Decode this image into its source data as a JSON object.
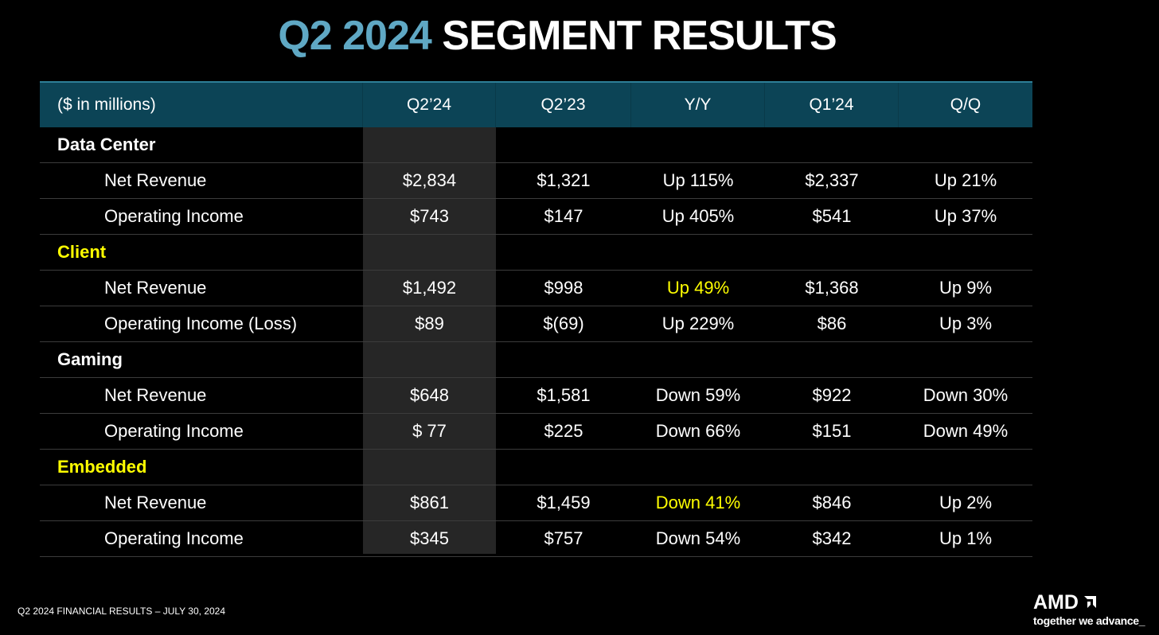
{
  "title": {
    "accent": "Q2 2024",
    "main": "SEGMENT RESULTS"
  },
  "table": {
    "columns": [
      "($ in millions)",
      "Q2’24",
      "Q2’23",
      "Y/Y",
      "Q1’24",
      "Q/Q"
    ],
    "rows": [
      {
        "type": "segment",
        "label": "Data Center",
        "highlight": false
      },
      {
        "type": "line",
        "label": "Net Revenue",
        "values": [
          "$2,834",
          "$1,321",
          "Up 115%",
          "$2,337",
          "Up 21%"
        ]
      },
      {
        "type": "line",
        "label": "Operating Income",
        "values": [
          "$743",
          "$147",
          "Up 405%",
          "$541",
          "Up 37%"
        ]
      },
      {
        "type": "segment",
        "label": "Client",
        "highlight": true
      },
      {
        "type": "line",
        "label": "Net Revenue",
        "values": [
          "$1,492",
          "$998",
          "Up 49%",
          "$1,368",
          "Up 9%"
        ],
        "yellow_yy": true
      },
      {
        "type": "line",
        "label": "Operating Income (Loss)",
        "values": [
          "$89",
          "$(69)",
          "Up 229%",
          "$86",
          "Up 3%"
        ]
      },
      {
        "type": "segment",
        "label": "Gaming",
        "highlight": false
      },
      {
        "type": "line",
        "label": "Net Revenue",
        "values": [
          "$648",
          "$1,581",
          "Down 59%",
          "$922",
          "Down 30%"
        ]
      },
      {
        "type": "line",
        "label": "Operating Income",
        "values": [
          "$ 77",
          "$225",
          "Down 66%",
          "$151",
          "Down 49%"
        ]
      },
      {
        "type": "segment",
        "label": "Embedded",
        "highlight": true
      },
      {
        "type": "line",
        "label": "Net Revenue",
        "values": [
          "$861",
          "$1,459",
          "Down 41%",
          "$846",
          "Up 2%"
        ],
        "yellow_yy": true
      },
      {
        "type": "line",
        "label": "Operating Income",
        "values": [
          "$345",
          "$757",
          "Down 54%",
          "$342",
          "Up 1%"
        ]
      }
    ]
  },
  "footer": {
    "text": "Q2 2024 FINANCIAL RESULTS – JULY 30, 2024"
  },
  "logo": {
    "brand": "AMD",
    "tagline": "together we advance_"
  },
  "colors": {
    "accent": "#5fa8c4",
    "header_bg": "#0c4456",
    "highlight_text": "#ffff00",
    "column_highlight": "#262626"
  }
}
